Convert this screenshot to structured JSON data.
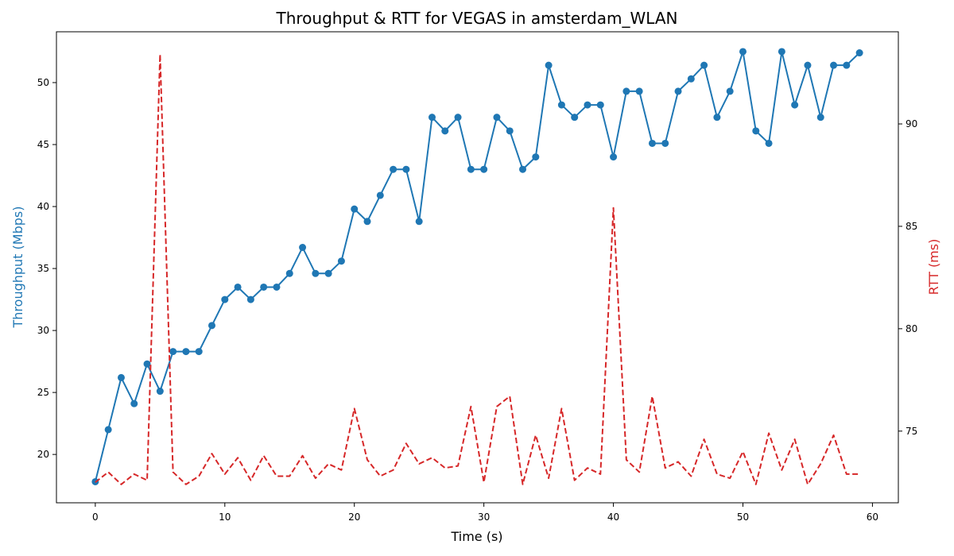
{
  "chart_data": {
    "type": "line",
    "title": "Throughput & RTT for VEGAS in amsterdam_WLAN",
    "xlabel": "Time (s)",
    "ylabel_left": "Throughput (Mbps)",
    "ylabel_right": "RTT (ms)",
    "xlim": [
      -3,
      62
    ],
    "ylim_left": [
      16.1,
      54.1
    ],
    "ylim_right": [
      71.5,
      94.5
    ],
    "x_ticks": [
      0,
      10,
      20,
      30,
      40,
      50,
      60
    ],
    "y_ticks_left": [
      20,
      25,
      30,
      35,
      40,
      45,
      50
    ],
    "y_ticks_right": [
      75,
      80,
      85,
      90
    ],
    "grid": false,
    "colors": {
      "throughput": "#1f77b4",
      "rtt": "#d62728"
    },
    "x": [
      0,
      1,
      2,
      3,
      4,
      5,
      6,
      7,
      8,
      9,
      10,
      11,
      12,
      13,
      14,
      15,
      16,
      17,
      18,
      19,
      20,
      21,
      22,
      23,
      24,
      25,
      26,
      27,
      28,
      29,
      30,
      31,
      32,
      33,
      34,
      35,
      36,
      37,
      38,
      39,
      40,
      41,
      42,
      43,
      44,
      45,
      46,
      47,
      48,
      49,
      50,
      51,
      52,
      53,
      54,
      55,
      56,
      57,
      58,
      59
    ],
    "series": [
      {
        "key": "throughput",
        "axis": "left",
        "style": "solid-markers",
        "values": [
          17.8,
          22.0,
          26.2,
          24.1,
          27.3,
          25.1,
          28.3,
          28.3,
          28.3,
          30.4,
          32.5,
          33.5,
          32.5,
          33.5,
          33.5,
          34.6,
          36.7,
          34.6,
          34.6,
          35.6,
          39.8,
          38.8,
          40.9,
          43.0,
          43.0,
          38.8,
          47.2,
          46.1,
          47.2,
          43.0,
          43.0,
          47.2,
          46.1,
          43.0,
          44.0,
          51.4,
          48.2,
          47.2,
          48.2,
          48.2,
          44.0,
          49.3,
          49.3,
          45.1,
          45.1,
          49.3,
          50.3,
          51.4,
          47.2,
          49.3,
          52.5,
          46.1,
          45.1,
          52.5,
          48.2,
          51.4,
          47.2,
          51.4,
          51.4,
          52.4
        ]
      },
      {
        "key": "rtt",
        "axis": "right",
        "style": "dashed",
        "values": [
          72.5,
          73.0,
          72.4,
          72.9,
          72.6,
          93.4,
          73.0,
          72.4,
          72.8,
          73.9,
          72.9,
          73.7,
          72.6,
          73.8,
          72.8,
          72.8,
          73.8,
          72.7,
          73.4,
          73.1,
          76.1,
          73.6,
          72.8,
          73.1,
          74.4,
          73.4,
          73.7,
          73.2,
          73.3,
          76.2,
          72.5,
          76.2,
          76.7,
          72.4,
          74.8,
          72.7,
          76.1,
          72.6,
          73.2,
          72.9,
          85.9,
          73.6,
          73.0,
          76.7,
          73.2,
          73.5,
          72.8,
          74.6,
          72.9,
          72.7,
          74.0,
          72.4,
          74.9,
          73.1,
          74.6,
          72.4,
          73.4,
          74.8,
          72.9,
          72.9
        ]
      }
    ]
  }
}
